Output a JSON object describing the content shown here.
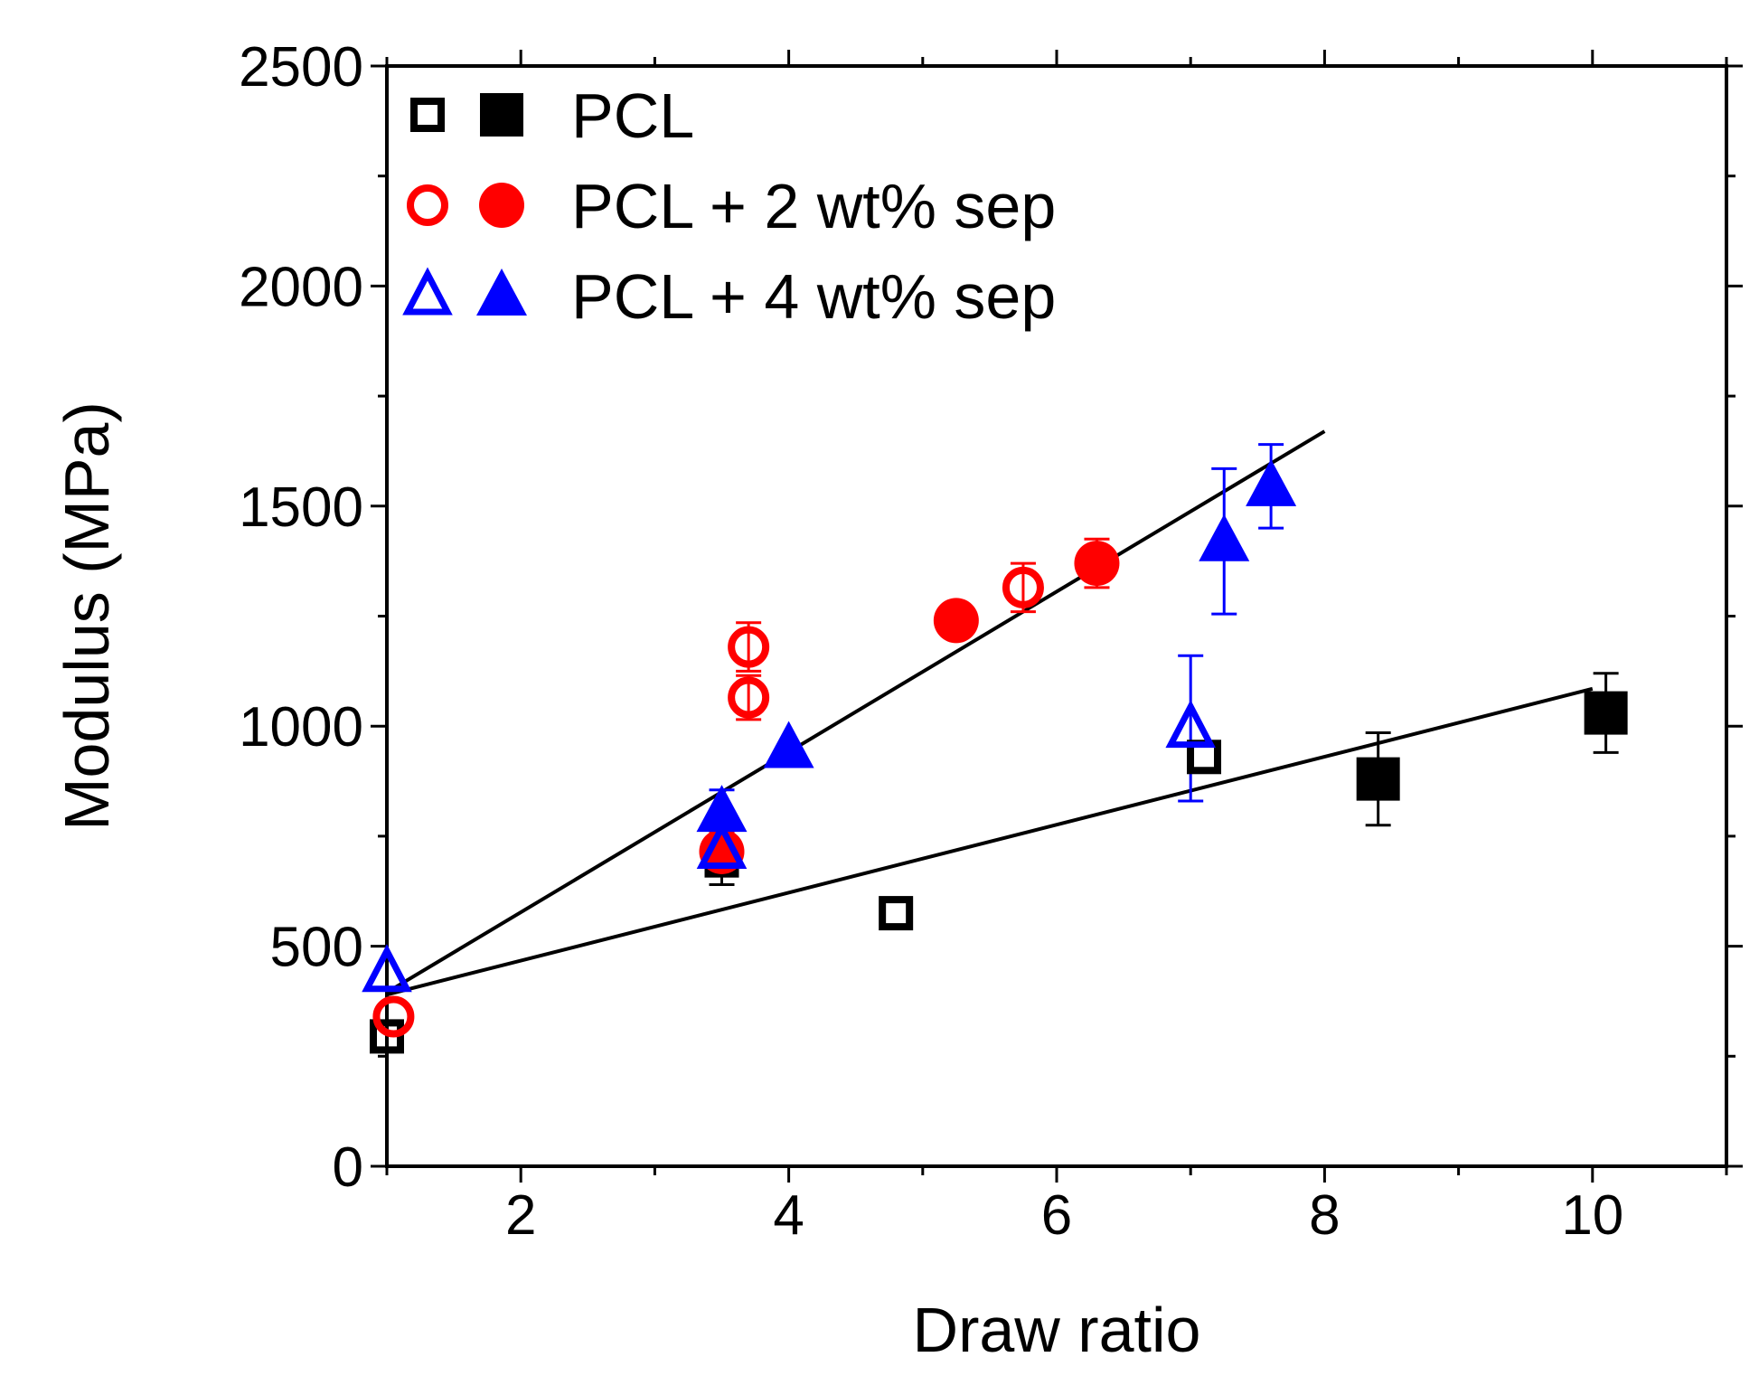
{
  "chart_data": {
    "type": "scatter",
    "title": "",
    "xlabel": "Draw ratio",
    "ylabel": "Modulus (MPa)",
    "xlim": [
      1,
      11
    ],
    "ylim": [
      0,
      2500
    ],
    "x_ticks": [
      2,
      4,
      6,
      8,
      10
    ],
    "y_ticks": [
      0,
      500,
      1000,
      1500,
      2000,
      2500
    ],
    "x_tick_labels": [
      "2",
      "4",
      "6",
      "8",
      "10"
    ],
    "y_tick_labels": [
      "0",
      "500",
      "1000",
      "1500",
      "2000",
      "2500"
    ],
    "grid": false,
    "legend_position": "top-left",
    "legend": [
      {
        "label": "PCL",
        "color": "#000000",
        "marker": "square"
      },
      {
        "label": "PCL + 2 wt% sep",
        "color": "#ff0000",
        "marker": "circle"
      },
      {
        "label": "PCL + 4 wt% sep",
        "color": "#0000ff",
        "marker": "triangle"
      }
    ],
    "series": [
      {
        "name": "PCL",
        "filled": false,
        "color": "#000000",
        "marker": "square",
        "points": [
          {
            "x": 1.0,
            "y": 295,
            "err": 0
          },
          {
            "x": 3.5,
            "y": 695,
            "err": 55
          },
          {
            "x": 4.8,
            "y": 575,
            "err": 0
          },
          {
            "x": 7.1,
            "y": 930,
            "err": 0
          }
        ]
      },
      {
        "name": "PCL",
        "filled": true,
        "color": "#000000",
        "marker": "square",
        "points": [
          {
            "x": 8.4,
            "y": 880,
            "err": 105
          },
          {
            "x": 10.1,
            "y": 1030,
            "err": 90
          }
        ]
      },
      {
        "name": "PCL + 2 wt% sep",
        "filled": false,
        "color": "#ff0000",
        "marker": "circle",
        "points": [
          {
            "x": 1.05,
            "y": 340,
            "err": 0
          },
          {
            "x": 3.7,
            "y": 1180,
            "err": 55
          },
          {
            "x": 3.7,
            "y": 1065,
            "err": 50
          },
          {
            "x": 5.75,
            "y": 1315,
            "err": 55
          }
        ]
      },
      {
        "name": "PCL + 2 wt% sep",
        "filled": true,
        "color": "#ff0000",
        "marker": "circle",
        "points": [
          {
            "x": 3.5,
            "y": 715,
            "err": 45
          },
          {
            "x": 5.25,
            "y": 1240,
            "err": 0
          },
          {
            "x": 6.3,
            "y": 1370,
            "err": 55
          }
        ]
      },
      {
        "name": "PCL + 4 wt% sep",
        "filled": false,
        "color": "#0000ff",
        "marker": "triangle",
        "points": [
          {
            "x": 1.0,
            "y": 440,
            "err": 0
          },
          {
            "x": 3.5,
            "y": 720,
            "err": 0
          },
          {
            "x": 7.0,
            "y": 995,
            "err": 165
          }
        ]
      },
      {
        "name": "PCL + 4 wt% sep",
        "filled": true,
        "color": "#0000ff",
        "marker": "triangle",
        "points": [
          {
            "x": 3.5,
            "y": 805,
            "err": 50
          },
          {
            "x": 4.0,
            "y": 950,
            "err": 0
          },
          {
            "x": 7.25,
            "y": 1420,
            "err": 165
          },
          {
            "x": 7.6,
            "y": 1545,
            "err": 95
          }
        ]
      }
    ],
    "fit_lines": [
      {
        "name": "fit-line-pcl",
        "color": "#000000",
        "x": [
          1.0,
          10.0
        ],
        "y": [
          390,
          1085
        ]
      },
      {
        "name": "fit-line-sep",
        "color": "#000000",
        "x": [
          1.0,
          8.0
        ],
        "y": [
          395,
          1670
        ]
      }
    ]
  }
}
